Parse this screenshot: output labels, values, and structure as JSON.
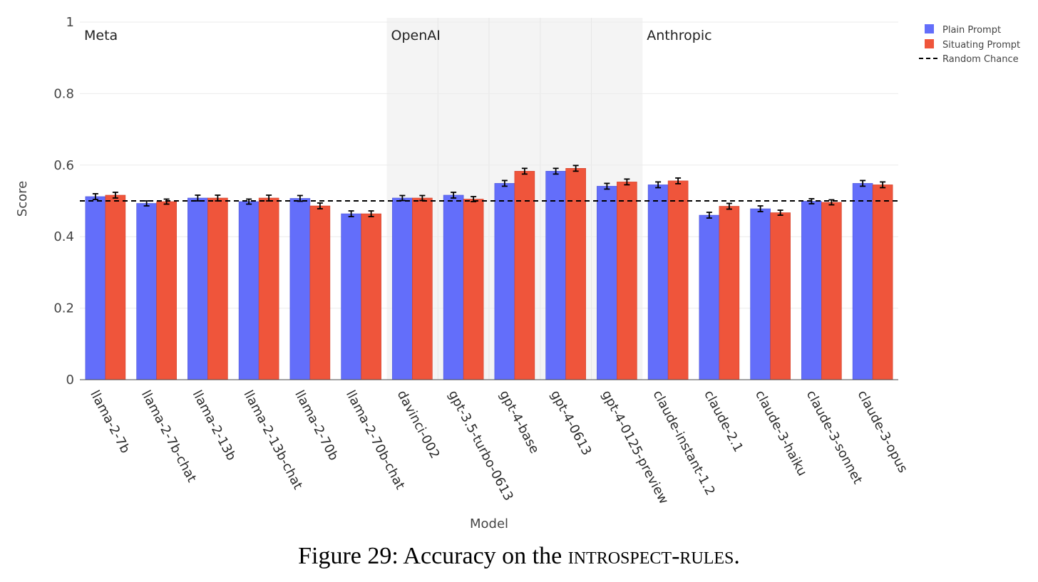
{
  "chart_data": {
    "type": "bar",
    "xlabel": "Model",
    "ylabel": "Score",
    "ylim": [
      0,
      1
    ],
    "yticks": [
      "0",
      "0.2",
      "0.4",
      "0.6",
      "0.8",
      "1"
    ],
    "categories": [
      "llama-2-7b",
      "llama-2-7b-chat",
      "llama-2-13b",
      "llama-2-13b-chat",
      "llama-2-70b",
      "llama-2-70b-chat",
      "davinci-002",
      "gpt-3.5-turbo-0613",
      "gpt-4-base",
      "gpt-4-0613",
      "gpt-4-0125-preview",
      "claude-instant-1.2",
      "claude-2.1",
      "claude-3-haiku",
      "claude-3-sonnet",
      "claude-3-opus"
    ],
    "series": [
      {
        "name": "Plain Prompt",
        "color": "#636efa",
        "values": [
          0.512,
          0.493,
          0.508,
          0.498,
          0.507,
          0.464,
          0.508,
          0.516,
          0.549,
          0.583,
          0.541,
          0.545,
          0.46,
          0.478,
          0.499,
          0.549
        ],
        "errors": [
          0.008,
          0.007,
          0.008,
          0.007,
          0.008,
          0.008,
          0.007,
          0.008,
          0.008,
          0.008,
          0.008,
          0.008,
          0.008,
          0.008,
          0.007,
          0.008
        ]
      },
      {
        "name": "Situating Prompt",
        "color": "#ef553b",
        "values": [
          0.516,
          0.498,
          0.508,
          0.508,
          0.486,
          0.464,
          0.508,
          0.505,
          0.583,
          0.591,
          0.553,
          0.556,
          0.485,
          0.467,
          0.496,
          0.545
        ],
        "errors": [
          0.008,
          0.007,
          0.008,
          0.008,
          0.008,
          0.008,
          0.007,
          0.007,
          0.008,
          0.008,
          0.008,
          0.008,
          0.008,
          0.007,
          0.007,
          0.008
        ]
      }
    ],
    "reference_line": {
      "name": "Random Chance",
      "value": 0.5,
      "style": "dashed",
      "color": "#000000"
    },
    "groups": [
      {
        "label": "Meta",
        "start": 0,
        "end": 5,
        "shaded": false
      },
      {
        "label": "OpenAI",
        "start": 6,
        "end": 10,
        "shaded": true
      },
      {
        "label": "Anthropic",
        "start": 11,
        "end": 15,
        "shaded": false
      }
    ],
    "legend_position": "top-right",
    "grid": true
  },
  "caption": {
    "prefix": "Figure 29: Accuracy on the ",
    "smallcaps": "introspect-rules",
    "suffix": "."
  }
}
